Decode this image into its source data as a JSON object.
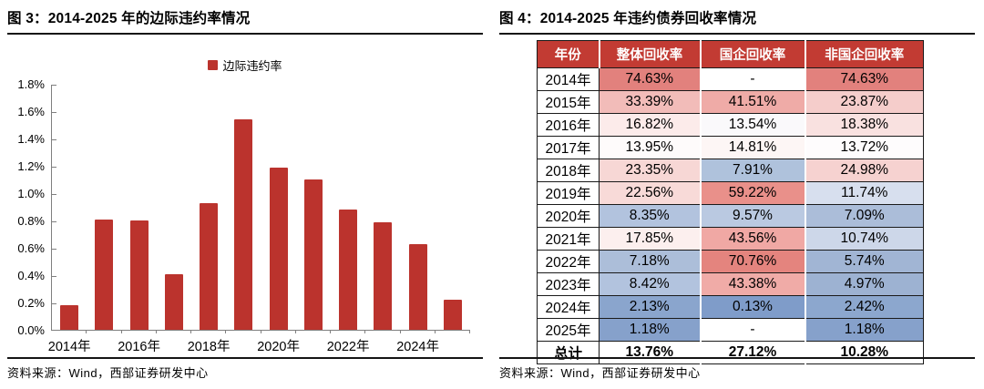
{
  "chart_data": [
    {
      "type": "bar",
      "title": "图 3：2014-2025 年的边际违约率情况",
      "legend": [
        "边际违约率"
      ],
      "legend_position": "top-center",
      "categories": [
        "2014年",
        "2015年",
        "2016年",
        "2017年",
        "2018年",
        "2019年",
        "2020年",
        "2021年",
        "2022年",
        "2023年",
        "2024年",
        "2025年"
      ],
      "values": [
        0.18,
        0.81,
        0.8,
        0.41,
        0.93,
        1.54,
        1.19,
        1.1,
        0.88,
        0.79,
        0.63,
        0.22
      ],
      "value_unit": "percent",
      "ylim": [
        0,
        1.8
      ],
      "ytick_labels": [
        "0.0%",
        "0.2%",
        "0.4%",
        "0.6%",
        "0.8%",
        "1.0%",
        "1.2%",
        "1.4%",
        "1.6%",
        "1.8%"
      ],
      "xtick_labels": [
        "2014年",
        "2016年",
        "2018年",
        "2020年",
        "2022年",
        "2024年"
      ],
      "grid": false,
      "bar_color": "#BB332D",
      "axis_color": "#7F7F7F",
      "source": "资料来源：Wind，西部证券研发中心"
    },
    {
      "type": "table",
      "title": "图 4：2014-2025 年违约债券回收率情况",
      "columns": [
        "年份",
        "整体回收率",
        "国企回收率",
        "非国企回收率"
      ],
      "header_bg": "#C23B33",
      "header_text_color": "#FFFFFF",
      "rows": [
        {
          "year": "2014年",
          "bold": false,
          "cells": [
            {
              "text": "74.63%",
              "bg": "#E2817D"
            },
            {
              "text": "-",
              "bg": "#FFFFFF"
            },
            {
              "text": "74.63%",
              "bg": "#E2817D"
            }
          ]
        },
        {
          "year": "2015年",
          "bold": false,
          "cells": [
            {
              "text": "33.39%",
              "bg": "#F2BCB9"
            },
            {
              "text": "41.51%",
              "bg": "#EFABA7"
            },
            {
              "text": "23.87%",
              "bg": "#F5CDCB"
            }
          ]
        },
        {
          "year": "2016年",
          "bold": false,
          "cells": [
            {
              "text": "16.82%",
              "bg": "#FCEBEA"
            },
            {
              "text": "13.54%",
              "bg": "#FAF9FB"
            },
            {
              "text": "18.38%",
              "bg": "#F9E1E0"
            }
          ]
        },
        {
          "year": "2017年",
          "bold": false,
          "cells": [
            {
              "text": "13.95%",
              "bg": "#FEFBFB"
            },
            {
              "text": "14.81%",
              "bg": "#FDF6F5"
            },
            {
              "text": "13.72%",
              "bg": "#FEFCFD"
            }
          ]
        },
        {
          "year": "2018年",
          "bold": false,
          "cells": [
            {
              "text": "23.35%",
              "bg": "#F7D7D5"
            },
            {
              "text": "7.91%",
              "bg": "#AFC2DC"
            },
            {
              "text": "24.98%",
              "bg": "#F6D2D0"
            }
          ]
        },
        {
          "year": "2019年",
          "bold": false,
          "cells": [
            {
              "text": "22.56%",
              "bg": "#F8DAD8"
            },
            {
              "text": "59.22%",
              "bg": "#E9908A"
            },
            {
              "text": "11.74%",
              "bg": "#D7DFEE"
            }
          ]
        },
        {
          "year": "2020年",
          "bold": false,
          "cells": [
            {
              "text": "8.35%",
              "bg": "#B2C3DE"
            },
            {
              "text": "9.57%",
              "bg": "#BAC9E1"
            },
            {
              "text": "7.09%",
              "bg": "#ABBDD9"
            }
          ]
        },
        {
          "year": "2021年",
          "bold": false,
          "cells": [
            {
              "text": "17.85%",
              "bg": "#FCEFEE"
            },
            {
              "text": "43.56%",
              "bg": "#F0A8A4"
            },
            {
              "text": "10.74%",
              "bg": "#CDD7E9"
            }
          ]
        },
        {
          "year": "2022年",
          "bold": false,
          "cells": [
            {
              "text": "7.18%",
              "bg": "#ACBED9"
            },
            {
              "text": "70.76%",
              "bg": "#E4847E"
            },
            {
              "text": "5.74%",
              "bg": "#A1B5D4"
            }
          ]
        },
        {
          "year": "2023年",
          "bold": false,
          "cells": [
            {
              "text": "8.42%",
              "bg": "#B2C3DE"
            },
            {
              "text": "43.38%",
              "bg": "#F0ABA7"
            },
            {
              "text": "4.97%",
              "bg": "#9DB2D2"
            }
          ]
        },
        {
          "year": "2024年",
          "bold": false,
          "cells": [
            {
              "text": "2.13%",
              "bg": "#8AA5CD"
            },
            {
              "text": "0.13%",
              "bg": "#7F9CC9"
            },
            {
              "text": "2.42%",
              "bg": "#8CA7CE"
            }
          ]
        },
        {
          "year": "2025年",
          "bold": false,
          "cells": [
            {
              "text": "1.18%",
              "bg": "#86A1CB"
            },
            {
              "text": "-",
              "bg": "#FFFFFF"
            },
            {
              "text": "1.18%",
              "bg": "#86A1CB"
            }
          ]
        },
        {
          "year": "总计",
          "bold": true,
          "cells": [
            {
              "text": "13.76%",
              "bg": "#FFFFFF"
            },
            {
              "text": "27.12%",
              "bg": "#FFFFFF"
            },
            {
              "text": "10.28%",
              "bg": "#FFFFFF"
            }
          ]
        }
      ],
      "source": "资料来源：Wind，西部证券研发中心"
    }
  ]
}
